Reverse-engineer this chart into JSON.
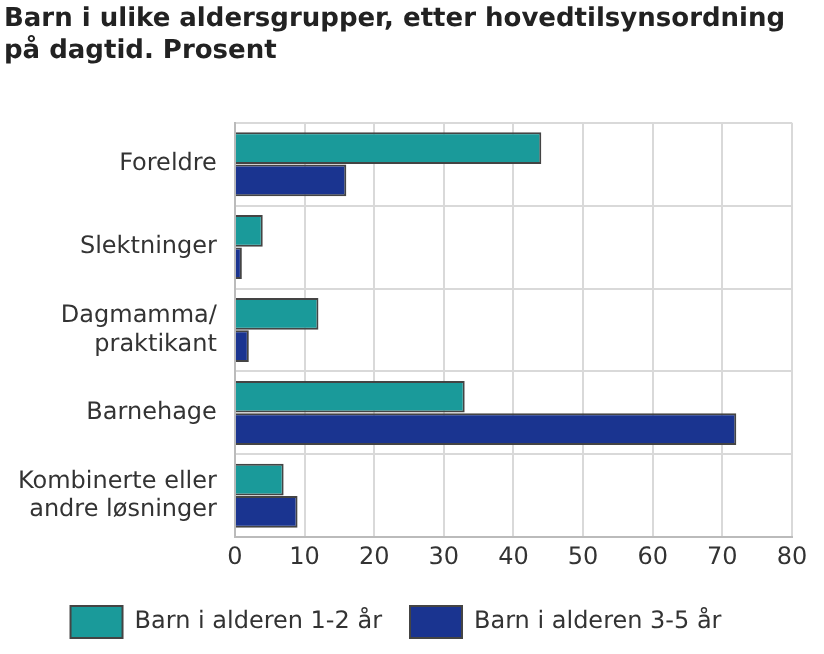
{
  "chart_data": {
    "type": "bar",
    "orientation": "horizontal",
    "title": "Barn i ulike aldersgrupper, etter hovedtilsynsordning på dagtid. Prosent",
    "categories": [
      "Foreldre",
      "Slektninger",
      "Dagmamma/praktikant",
      "Barnehage",
      "Kombinerte eller andre løsninger"
    ],
    "series": [
      {
        "name": "Barn i alderen 1-2 år",
        "color": "#1a9a9a",
        "values": [
          44,
          4,
          12,
          33,
          7
        ]
      },
      {
        "name": "Barn i alderen 3-5 år",
        "color": "#1a3490",
        "values": [
          16,
          1,
          2,
          72,
          9
        ]
      }
    ],
    "xlim": [
      0,
      80
    ],
    "xticks": [
      0,
      10,
      20,
      30,
      40,
      50,
      60,
      70,
      80
    ],
    "grid": true,
    "legend": "bottom"
  }
}
